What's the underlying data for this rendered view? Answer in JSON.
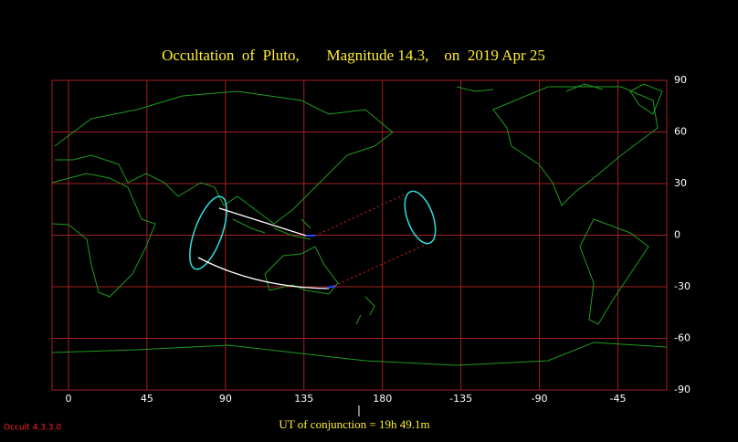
{
  "title": "Occultation  of  Pluto,       Magnitude 14.3,    on  2019 Apr 25",
  "map": {
    "xlim": [
      -9.4,
      343
    ],
    "ylim": [
      -90,
      90
    ],
    "xticks": [
      0,
      45,
      90,
      135,
      180,
      -135,
      -90,
      -45
    ],
    "yticks": [
      90,
      60,
      30,
      0,
      -30,
      -60,
      -90
    ]
  },
  "conjunction": "UT of conjunction = 19h 49.1m",
  "version": "Occult 4.3.3.0"
}
